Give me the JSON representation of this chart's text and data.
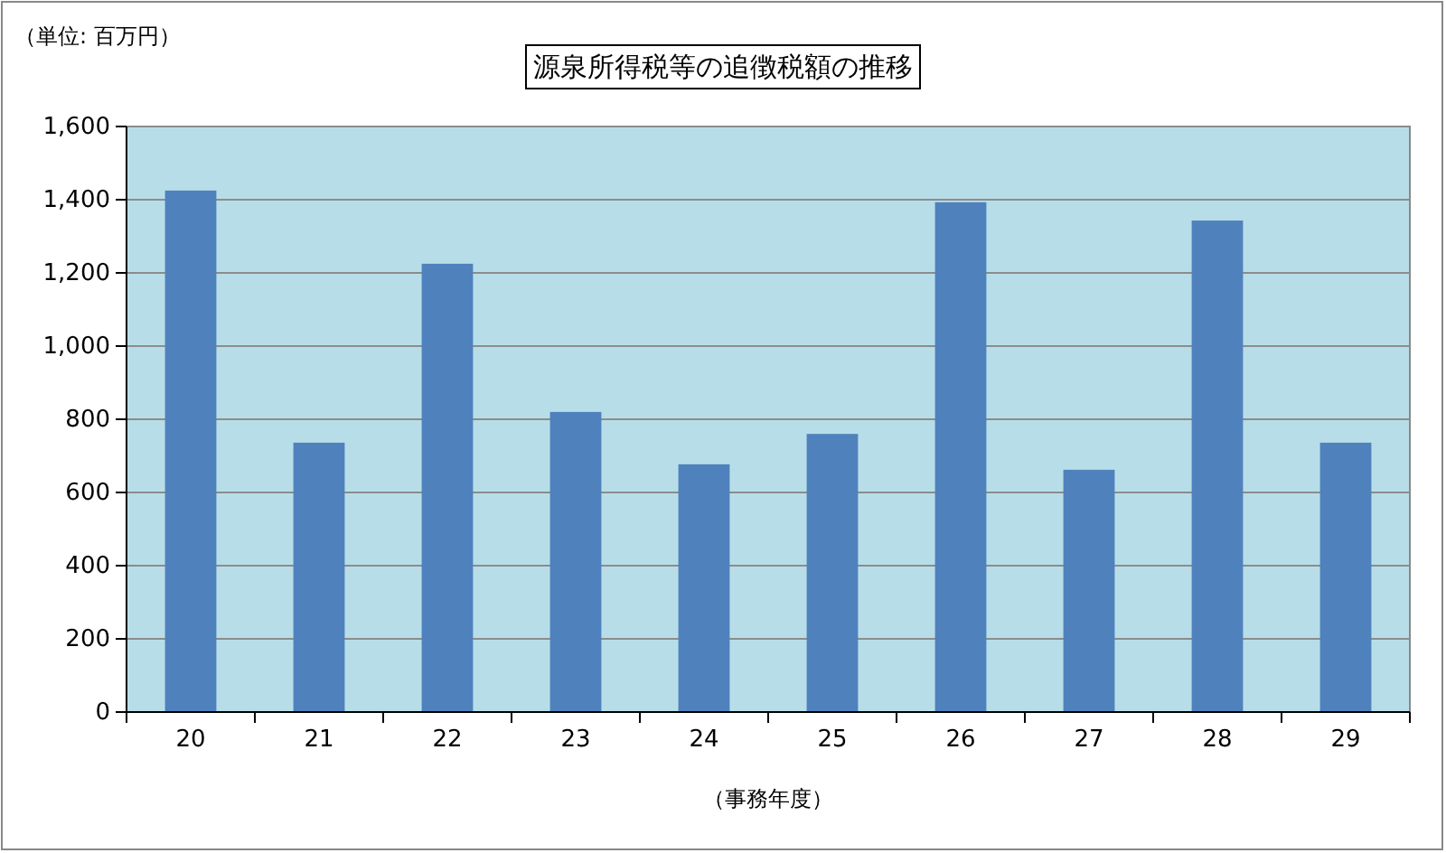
{
  "chart_data": {
    "type": "bar",
    "title": "源泉所得税等の追徴税額の推移",
    "ylabel": "（単位: 百万円）",
    "xlabel": "（事務年度）",
    "categories": [
      "20",
      "21",
      "22",
      "23",
      "24",
      "25",
      "26",
      "27",
      "28",
      "29"
    ],
    "values": [
      1425,
      736,
      1225,
      820,
      677,
      760,
      1393,
      662,
      1343,
      736
    ],
    "color": "#4f81bd",
    "ylim": [
      0,
      1600
    ],
    "yticks": [
      {
        "value": 0,
        "label": "0"
      },
      {
        "value": 200,
        "label": "200"
      },
      {
        "value": 400,
        "label": "400"
      },
      {
        "value": 600,
        "label": "600"
      },
      {
        "value": 800,
        "label": "800"
      },
      {
        "value": 1000,
        "label": "1,000"
      },
      {
        "value": 1200,
        "label": "1,200"
      },
      {
        "value": 1400,
        "label": "1,400"
      },
      {
        "value": 1600,
        "label": "1,600"
      }
    ],
    "grid": "y"
  }
}
